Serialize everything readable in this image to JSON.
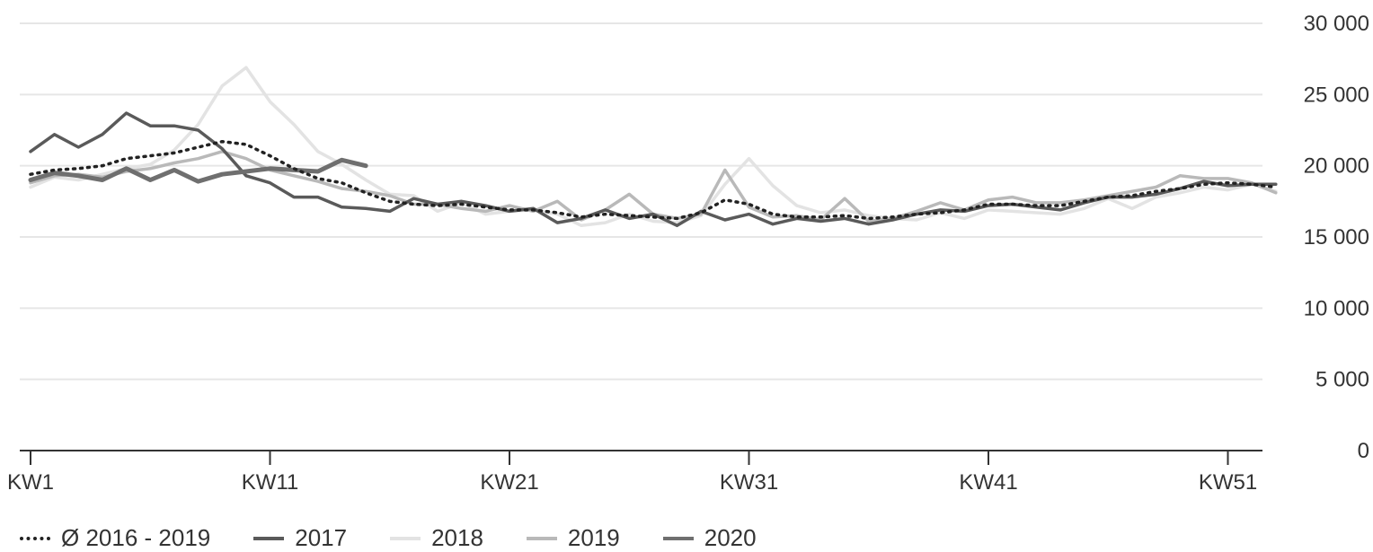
{
  "chart_data": {
    "type": "line",
    "title": "",
    "xlabel": "",
    "ylabel": "",
    "ylim": [
      0,
      30000
    ],
    "xlim": [
      1,
      53
    ],
    "y_ticks": [
      0,
      5000,
      10000,
      15000,
      20000,
      25000,
      30000
    ],
    "y_tick_labels": [
      "0",
      "5 000",
      "10 000",
      "15 000",
      "20 000",
      "25 000",
      "30 000"
    ],
    "x_ticks": [
      1,
      11,
      21,
      31,
      41,
      51
    ],
    "x_tick_labels": [
      "KW1",
      "KW11",
      "KW21",
      "KW31",
      "KW41",
      "KW51"
    ],
    "grid": "horizontal",
    "legend_position": "bottom-left",
    "series": [
      {
        "name": "Ø 2016 - 2019",
        "color": "#222222",
        "style": "dotted",
        "width": 3.5,
        "x": [
          1,
          2,
          3,
          4,
          5,
          6,
          7,
          8,
          9,
          10,
          11,
          12,
          13,
          14,
          15,
          16,
          17,
          18,
          19,
          20,
          21,
          22,
          23,
          24,
          25,
          26,
          27,
          28,
          29,
          30,
          31,
          32,
          33,
          34,
          35,
          36,
          37,
          38,
          39,
          40,
          41,
          42,
          43,
          44,
          45,
          46,
          47,
          48,
          49,
          50,
          51,
          52,
          53
        ],
        "values": [
          19400,
          19700,
          19800,
          20000,
          20500,
          20700,
          20900,
          21300,
          21700,
          21500,
          20700,
          19800,
          19100,
          18800,
          18100,
          17500,
          17300,
          17200,
          17300,
          17100,
          16900,
          16900,
          16700,
          16400,
          16600,
          16500,
          16400,
          16300,
          16700,
          17600,
          17300,
          16600,
          16400,
          16400,
          16500,
          16300,
          16400,
          16600,
          16700,
          16900,
          17300,
          17300,
          17200,
          17200,
          17500,
          17800,
          17900,
          18200,
          18400,
          18700,
          18800,
          18700,
          18500
        ]
      },
      {
        "name": "2017",
        "color": "#5a5a5a",
        "style": "solid",
        "width": 3.5,
        "x": [
          1,
          2,
          3,
          4,
          5,
          6,
          7,
          8,
          9,
          10,
          11,
          12,
          13,
          14,
          15,
          16,
          17,
          18,
          19,
          20,
          21,
          22,
          23,
          24,
          25,
          26,
          27,
          28,
          29,
          30,
          31,
          32,
          33,
          34,
          35,
          36,
          37,
          38,
          39,
          40,
          41,
          42,
          43,
          44,
          45,
          46,
          47,
          48,
          49,
          50,
          51,
          52,
          53
        ],
        "values": [
          21000,
          22200,
          21300,
          22200,
          23700,
          22800,
          22800,
          22500,
          21200,
          19300,
          18800,
          17800,
          17800,
          17100,
          17000,
          16800,
          17700,
          17300,
          17500,
          17200,
          16800,
          17000,
          16000,
          16300,
          16900,
          16300,
          16600,
          15800,
          16800,
          16200,
          16600,
          15900,
          16300,
          16100,
          16300,
          15900,
          16200,
          16600,
          16900,
          16800,
          17200,
          17300,
          17100,
          16900,
          17400,
          17800,
          17800,
          18000,
          18400,
          18900,
          18600,
          18700,
          18700
        ]
      },
      {
        "name": "2018",
        "color": "#e3e3e3",
        "style": "solid",
        "width": 3.5,
        "x": [
          1,
          2,
          3,
          4,
          5,
          6,
          7,
          8,
          9,
          10,
          11,
          12,
          13,
          14,
          15,
          16,
          17,
          18,
          19,
          20,
          21,
          22,
          23,
          24,
          25,
          26,
          27,
          28,
          29,
          30,
          31,
          32,
          33,
          34,
          35,
          36,
          37,
          38,
          39,
          40,
          41,
          42,
          43,
          44,
          45,
          46,
          47,
          48,
          49,
          50,
          51,
          52,
          53
        ],
        "values": [
          18500,
          19200,
          19000,
          19400,
          19800,
          20100,
          21100,
          22900,
          25600,
          26900,
          24500,
          22900,
          21000,
          20100,
          19000,
          18000,
          17900,
          16800,
          17400,
          16600,
          16800,
          16900,
          16600,
          15800,
          16000,
          16600,
          16100,
          16000,
          16500,
          18700,
          20500,
          18600,
          17200,
          16700,
          16900,
          16500,
          16300,
          16200,
          16700,
          16300,
          16900,
          16800,
          16700,
          16600,
          17000,
          17700,
          17000,
          17800,
          18100,
          18500,
          18300,
          18700,
          18200
        ]
      },
      {
        "name": "2019",
        "color": "#b9b9b9",
        "style": "solid",
        "width": 3.5,
        "x": [
          1,
          2,
          3,
          4,
          5,
          6,
          7,
          8,
          9,
          10,
          11,
          12,
          13,
          14,
          15,
          16,
          17,
          18,
          19,
          20,
          21,
          22,
          23,
          24,
          25,
          26,
          27,
          28,
          29,
          30,
          31,
          32,
          33,
          34,
          35,
          36,
          37,
          38,
          39,
          40,
          41,
          42,
          43,
          44,
          45,
          46,
          47,
          48,
          49,
          50,
          51,
          52,
          53
        ],
        "values": [
          18800,
          19300,
          19400,
          19200,
          19600,
          19800,
          20200,
          20500,
          21000,
          20500,
          19700,
          19300,
          18900,
          18400,
          18200,
          17900,
          17300,
          17300,
          17000,
          16800,
          17200,
          16800,
          17500,
          16200,
          16900,
          18000,
          16600,
          16300,
          16600,
          19700,
          17100,
          16400,
          16500,
          16200,
          17700,
          16100,
          16300,
          16800,
          17400,
          16900,
          17600,
          17800,
          17400,
          17400,
          17600,
          17900,
          18200,
          18500,
          19300,
          19100,
          19100,
          18800,
          18100
        ]
      },
      {
        "name": "2020",
        "color": "#6f6f6f",
        "style": "solid",
        "width": 5,
        "x": [
          1,
          2,
          3,
          4,
          5,
          6,
          7,
          8,
          9,
          10,
          11,
          12,
          13,
          14,
          15
        ],
        "values": [
          19000,
          19500,
          19300,
          19000,
          19800,
          19000,
          19700,
          18900,
          19400,
          19600,
          19800,
          19700,
          19600,
          20400,
          20000
        ]
      }
    ]
  }
}
